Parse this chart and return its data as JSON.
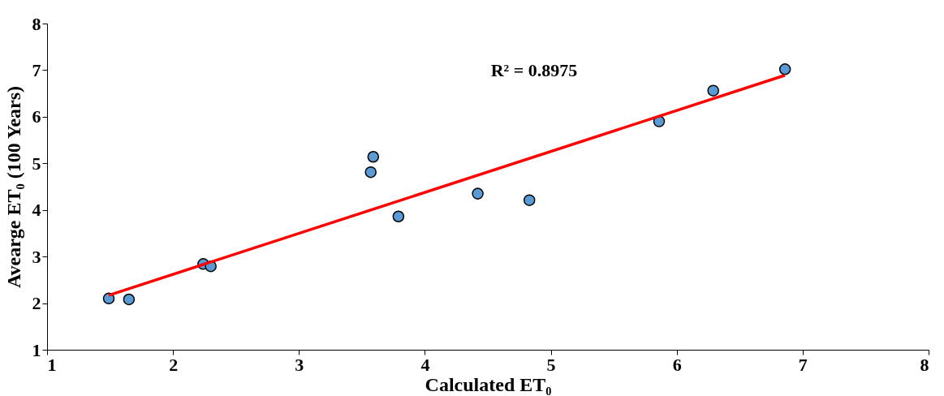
{
  "chart_data": {
    "type": "scatter",
    "xlabel": "Calculated ET₀",
    "ylabel": "Avearge ET₀ (100 Years)",
    "x": [
      1.49,
      1.65,
      2.24,
      2.3,
      3.57,
      3.59,
      3.79,
      4.42,
      4.83,
      5.86,
      6.29,
      6.86
    ],
    "series": [
      {
        "type": "scatter",
        "color": "#5b9bd5",
        "marker": "circle",
        "values": [
          2.1,
          2.08,
          2.84,
          2.79,
          4.81,
          5.14,
          3.86,
          4.35,
          4.21,
          5.9,
          6.56,
          7.02
        ]
      },
      {
        "type": "line",
        "color": "#ff0000",
        "x": [
          1.49,
          6.86
        ],
        "values": [
          2.17,
          6.89
        ]
      }
    ],
    "annotations": [
      "R² = 0.8975"
    ],
    "xlim": [
      1,
      8
    ],
    "ylim": [
      1,
      8
    ],
    "xticks": [
      1,
      2,
      3,
      4,
      5,
      6,
      7,
      8
    ],
    "yticks": [
      1,
      2,
      3,
      4,
      5,
      6,
      7,
      8
    ],
    "grid": false
  }
}
